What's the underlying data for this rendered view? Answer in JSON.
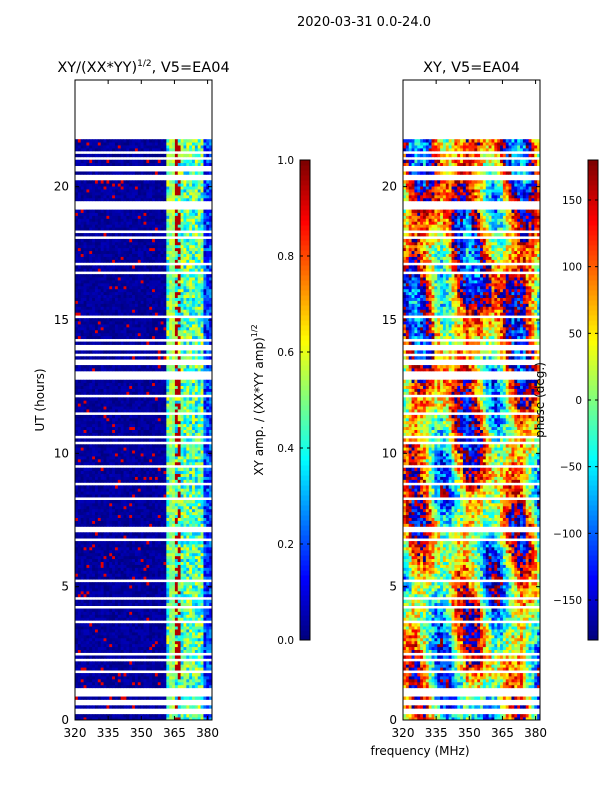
{
  "suptitle": "2020-03-31 0.0-24.0",
  "colors": {
    "jet": [
      "#00007f",
      "#0000ff",
      "#007fff",
      "#00ffff",
      "#7fff7f",
      "#ffff00",
      "#ff7f00",
      "#ff0000",
      "#7f0000"
    ],
    "bg": "#ffffff",
    "axis": "#000000"
  },
  "chart_data": [
    {
      "type": "heatmap",
      "title_main": "XY/(XX*YY)",
      "title_sup": "1/2",
      "title_tail": ", V5=EA04",
      "xlabel": "",
      "ylabel": "UT (hours)",
      "xlim": [
        320,
        382
      ],
      "ylim": [
        0,
        24
      ],
      "xticks": [
        320,
        335,
        350,
        365,
        380
      ],
      "yticks": [
        0,
        5,
        10,
        15,
        20
      ],
      "data_extent_hours": [
        0,
        21.8
      ],
      "description_values": "normalized XY amplitude, mostly near 0 below 361 MHz, 0.3-0.6 between 361 and 378 MHz"
    },
    {
      "type": "heatmap",
      "title": "XY, V5=EA04",
      "xlabel": "frequency (MHz)",
      "ylabel": "",
      "xlim": [
        320,
        382
      ],
      "ylim": [
        0,
        24
      ],
      "xticks": [
        320,
        335,
        350,
        365,
        380
      ],
      "yticks": [
        0,
        5,
        10,
        15,
        20
      ],
      "data_extent_hours": [
        0,
        21.8
      ]
    }
  ],
  "colorbars": [
    {
      "label_main": "XY amp. / (XX*YY amp)",
      "label_sup": "1/2",
      "range": [
        0.0,
        1.0
      ],
      "ticks": [
        "0.0",
        "0.2",
        "0.4",
        "0.6",
        "0.8",
        "1.0"
      ],
      "tick_values": [
        0.0,
        0.2,
        0.4,
        0.6,
        0.8,
        1.0
      ]
    },
    {
      "label": "phase (deg.)",
      "range": [
        -180,
        180
      ],
      "ticks": [
        "−150",
        "−100",
        "−50",
        "0",
        "50",
        "100",
        "150"
      ],
      "tick_values": [
        -150,
        -100,
        -50,
        0,
        50,
        100,
        150
      ]
    }
  ]
}
